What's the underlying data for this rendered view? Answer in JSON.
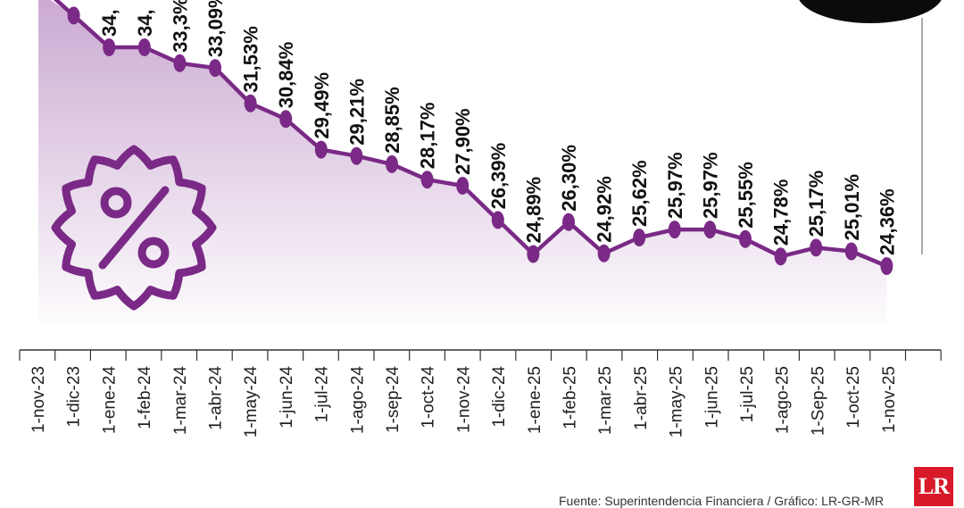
{
  "chart_data": {
    "type": "line",
    "title": "",
    "xlabel": "",
    "ylabel": "",
    "x": [
      "1-nov-23",
      "1-dic-23",
      "1-ene-24",
      "1-feb-24",
      "1-mar-24",
      "1-abr-24",
      "1-may-24",
      "1-jun-24",
      "1-jul-24",
      "1-ago-24",
      "1-sep-24",
      "1-oct-24",
      "1-nov-24",
      "1-dic-24",
      "1-ene-25",
      "1-feb-25",
      "1-mar-25",
      "1-abr-25",
      "1-may-25",
      "1-jun-25",
      "1-jul-25",
      "1-ago-25",
      "1-Sep-25",
      "1-oct-25",
      "1-nov-25"
    ],
    "values": [
      null,
      35.4,
      34.0,
      34.0,
      33.3,
      33.09,
      31.53,
      30.84,
      29.49,
      29.21,
      28.85,
      28.17,
      27.9,
      26.39,
      24.89,
      26.3,
      24.92,
      25.62,
      25.97,
      25.97,
      25.55,
      24.78,
      25.17,
      25.01,
      24.36
    ],
    "point_labels": [
      "",
      "",
      "34,",
      "34,",
      "33,3%",
      "33,09%",
      "31,53%",
      "30,84%",
      "29,49%",
      "29,21%",
      "28,85%",
      "28,17%",
      "27,90%",
      "26,39%",
      "24,89%",
      "26,30%",
      "24,92%",
      "25,62%",
      "25,97%",
      "25,97%",
      "25,55%",
      "24,78%",
      "25,17%",
      "25,01%",
      "24,36%"
    ],
    "line_color": "#7a2a86",
    "area_color": "#c9a6d0",
    "grid": false
  },
  "badge_icon": "percent-badge-icon",
  "source_text": "Fuente: Superintendencia Financiera / Gráfico: LR-GR-MR",
  "logo_text": "LR"
}
